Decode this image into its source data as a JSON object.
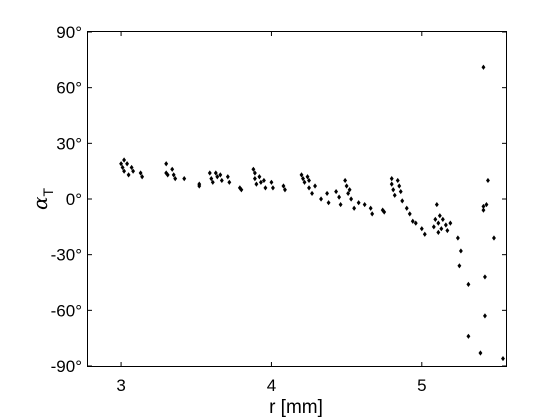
{
  "chart_data": {
    "type": "scatter",
    "xlabel": "r [mm]",
    "ylabel": {
      "symbol": "α",
      "subscript": "T"
    },
    "xlim": [
      2.78,
      5.56
    ],
    "ylim": [
      -90,
      90
    ],
    "x_ticks": [
      3,
      4,
      5
    ],
    "y_ticks": [
      90,
      60,
      30,
      0,
      -30,
      -60,
      -90
    ],
    "x_tick_labels": [
      "3",
      "4",
      "5"
    ],
    "y_tick_labels": [
      "90°",
      "60°",
      "30°",
      "0°",
      "-30°",
      "-60°",
      "-90°"
    ],
    "grid": false,
    "marker": "diamond",
    "series": [
      {
        "points": [
          [
            3.0,
            19
          ],
          [
            3.01,
            17
          ],
          [
            3.02,
            21
          ],
          [
            3.02,
            15
          ],
          [
            3.04,
            19
          ],
          [
            3.05,
            13
          ],
          [
            3.07,
            17
          ],
          [
            3.08,
            15
          ],
          [
            3.13,
            14
          ],
          [
            3.14,
            12
          ],
          [
            3.3,
            19
          ],
          [
            3.3,
            14
          ],
          [
            3.31,
            13
          ],
          [
            3.34,
            16
          ],
          [
            3.35,
            13
          ],
          [
            3.36,
            11
          ],
          [
            3.42,
            11
          ],
          [
            3.52,
            8
          ],
          [
            3.52,
            7
          ],
          [
            3.59,
            14
          ],
          [
            3.6,
            11
          ],
          [
            3.61,
            9
          ],
          [
            3.63,
            14
          ],
          [
            3.64,
            12
          ],
          [
            3.66,
            13
          ],
          [
            3.67,
            10
          ],
          [
            3.71,
            12
          ],
          [
            3.72,
            9
          ],
          [
            3.79,
            6
          ],
          [
            3.8,
            5
          ],
          [
            3.88,
            16
          ],
          [
            3.89,
            14
          ],
          [
            3.89,
            11
          ],
          [
            3.9,
            8
          ],
          [
            3.92,
            12
          ],
          [
            3.93,
            9
          ],
          [
            3.95,
            10
          ],
          [
            3.96,
            6
          ],
          [
            4.0,
            9
          ],
          [
            4.01,
            6
          ],
          [
            4.08,
            7
          ],
          [
            4.09,
            5
          ],
          [
            4.2,
            13
          ],
          [
            4.21,
            11
          ],
          [
            4.22,
            9
          ],
          [
            4.24,
            12
          ],
          [
            4.25,
            10
          ],
          [
            4.25,
            6
          ],
          [
            4.27,
            3
          ],
          [
            4.29,
            7
          ],
          [
            4.33,
            0
          ],
          [
            4.37,
            3
          ],
          [
            4.38,
            -2
          ],
          [
            4.43,
            4
          ],
          [
            4.45,
            1
          ],
          [
            4.46,
            -3
          ],
          [
            4.49,
            10
          ],
          [
            4.5,
            7
          ],
          [
            4.51,
            3
          ],
          [
            4.52,
            5
          ],
          [
            4.53,
            0
          ],
          [
            4.55,
            -5
          ],
          [
            4.58,
            -2
          ],
          [
            4.62,
            -3
          ],
          [
            4.66,
            -5
          ],
          [
            4.67,
            -8
          ],
          [
            4.74,
            -6
          ],
          [
            4.75,
            -7
          ],
          [
            4.8,
            11
          ],
          [
            4.8,
            8
          ],
          [
            4.81,
            5
          ],
          [
            4.82,
            2
          ],
          [
            4.84,
            10
          ],
          [
            4.85,
            7
          ],
          [
            4.86,
            4
          ],
          [
            4.87,
            -1
          ],
          [
            4.9,
            -5
          ],
          [
            4.92,
            -8
          ],
          [
            4.94,
            -12
          ],
          [
            4.96,
            -13
          ],
          [
            5.0,
            -16
          ],
          [
            5.02,
            -19
          ],
          [
            5.08,
            -15
          ],
          [
            5.09,
            -11
          ],
          [
            5.1,
            -3
          ],
          [
            5.11,
            -13
          ],
          [
            5.11,
            -18
          ],
          [
            5.12,
            -9
          ],
          [
            5.13,
            -16
          ],
          [
            5.14,
            -11
          ],
          [
            5.16,
            -14
          ],
          [
            5.17,
            -17
          ],
          [
            5.19,
            -13
          ],
          [
            5.24,
            -21
          ],
          [
            5.26,
            -28
          ],
          [
            5.25,
            -36
          ],
          [
            5.31,
            -46
          ],
          [
            5.31,
            -74
          ],
          [
            5.39,
            -83
          ],
          [
            5.41,
            -6
          ],
          [
            5.41,
            -4
          ],
          [
            5.42,
            -42
          ],
          [
            5.42,
            -63
          ],
          [
            5.41,
            71
          ],
          [
            5.43,
            -3
          ],
          [
            5.44,
            10
          ],
          [
            5.48,
            -21
          ],
          [
            5.54,
            -86
          ]
        ]
      }
    ]
  }
}
